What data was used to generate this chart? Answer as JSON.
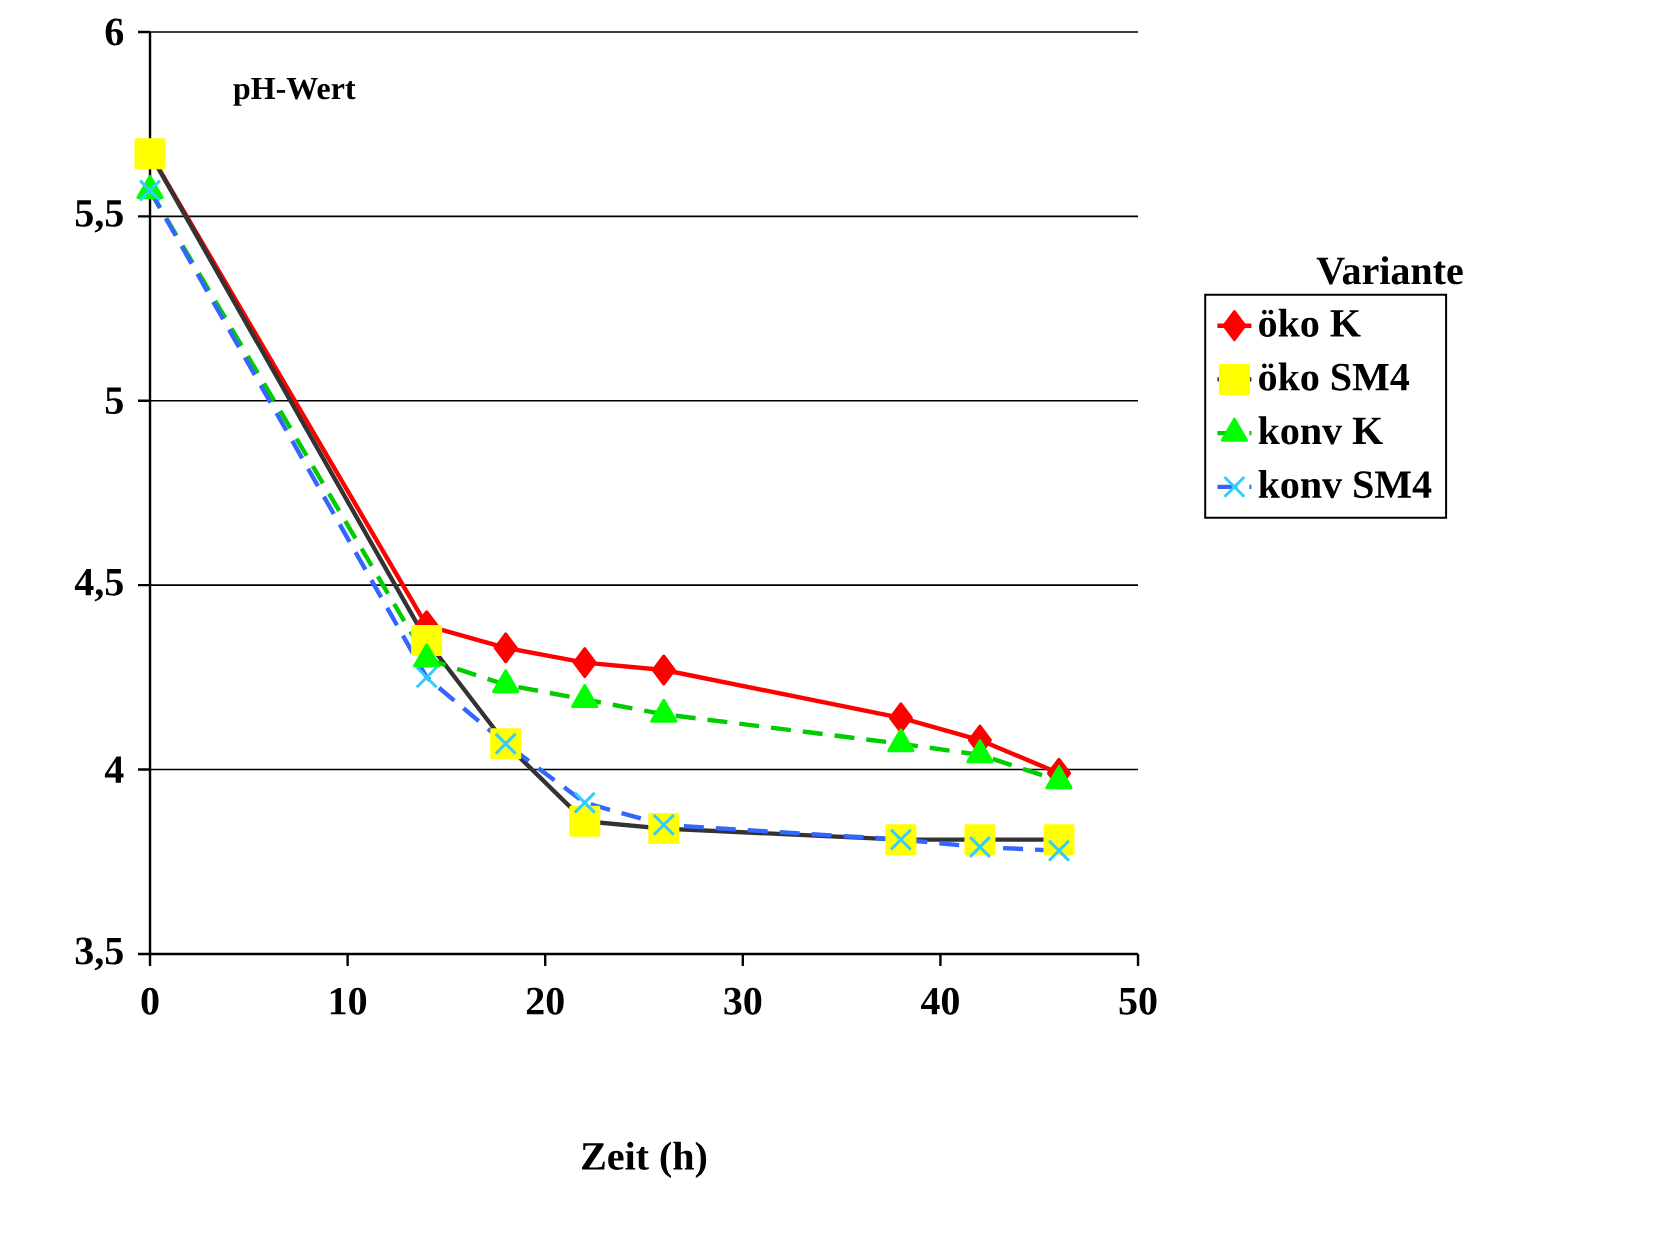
{
  "chart_data": {
    "type": "line",
    "xlabel": "Zeit (h)",
    "legend_title": "Variante",
    "annotations": [
      "pH-Wert"
    ],
    "x": [
      0,
      14,
      18,
      22,
      26,
      38,
      42,
      46
    ],
    "xlim": [
      0,
      50
    ],
    "xticks": [
      0,
      10,
      20,
      30,
      40,
      50
    ],
    "ylim": [
      3.5,
      6
    ],
    "yticks": [
      {
        "value": 3.5,
        "label": "3,5"
      },
      4,
      {
        "value": 4.5,
        "label": "4,5"
      },
      5,
      {
        "value": 5.5,
        "label": "5,5"
      },
      6
    ],
    "grid": "y",
    "legend": "right",
    "series": [
      {
        "name": "öko K",
        "color": "#ff0000",
        "colors": [
          "#ff0000",
          "#ff0000",
          "#ff0000",
          "#ff0000",
          "#ff0000",
          "#ff0000",
          "#ff0000",
          "#ff0000"
        ],
        "marker": "diamond",
        "line_style": "solid",
        "values": [
          5.67,
          4.39,
          4.33,
          4.29,
          4.27,
          4.14,
          4.08,
          3.99
        ]
      },
      {
        "name": "öko SM4",
        "color": "#333333",
        "colors": [
          "#ffff00",
          "#ffff00",
          "#ffff00",
          "#ffff00",
          "#ffff00",
          "#ffff00",
          "#ffff00",
          "#ffff00"
        ],
        "marker": "square",
        "line_style": "solid",
        "values": [
          5.67,
          4.35,
          4.07,
          3.86,
          3.84,
          3.81,
          3.81,
          3.81
        ]
      },
      {
        "name": "konv K",
        "color": "#00cc00",
        "colors": [
          "#00ff00",
          "#00ff00",
          "#00ff00",
          "#00ff00",
          "#00ff00",
          "#00ff00",
          "#00ff00",
          "#00ff00"
        ],
        "marker": "triangle",
        "line_style": "dashed",
        "values": [
          5.57,
          4.3,
          4.23,
          4.19,
          4.15,
          4.07,
          4.04,
          3.97
        ]
      },
      {
        "name": "konv SM4",
        "color": "#3366ff",
        "colors": [
          "#33ccff",
          "#33ccff",
          "#33ccff",
          "#33ccff",
          "#33ccff",
          "#33ccff",
          "#33ccff",
          "#33ccff"
        ],
        "marker": "cross",
        "line_style": "dashed",
        "values": [
          5.57,
          4.25,
          4.07,
          3.91,
          3.85,
          3.81,
          3.79,
          3.78
        ]
      }
    ]
  }
}
